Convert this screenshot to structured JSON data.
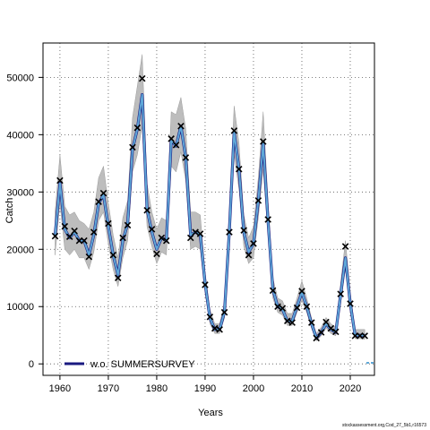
{
  "chart_data": {
    "type": "line",
    "title": "",
    "xlabel": "Years",
    "ylabel": "Catch",
    "xlim": [
      1956.5,
      2025
    ],
    "ylim": [
      -2000,
      56000
    ],
    "x_ticks": [
      1960,
      1970,
      1980,
      1990,
      2000,
      2010,
      2020
    ],
    "y_ticks": [
      0,
      10000,
      20000,
      30000,
      40000,
      50000
    ],
    "x_tick_labels": [
      "1960",
      "1970",
      "1980",
      "1990",
      "2000",
      "2010",
      "2020"
    ],
    "y_tick_labels": [
      "0",
      "10000",
      "20000",
      "30000",
      "40000",
      "50000"
    ],
    "grid": true,
    "legend_position": "bottom-left",
    "caption": "stockassessment.org,Cod_27_5b1,r16573",
    "colors": {
      "band": "#bdbdbd",
      "band_edge": "#9a9a9a",
      "line": "#5fa8d8",
      "line_dark": "#1a1a80",
      "observed": "#000000",
      "grid": "#555555"
    },
    "series": [
      {
        "name": "w.o. SUMMERSURVEY",
        "years": [
          1959,
          1960,
          1961,
          1962,
          1963,
          1964,
          1965,
          1966,
          1967,
          1968,
          1969,
          1970,
          1971,
          1972,
          1973,
          1974,
          1975,
          1976,
          1977,
          1978,
          1979,
          1980,
          1981,
          1982,
          1983,
          1984,
          1985,
          1986,
          1987,
          1988,
          1989,
          1990,
          1991,
          1992,
          1993,
          1994,
          1995,
          1996,
          1997,
          1998,
          1999,
          2000,
          2001,
          2002,
          2003,
          2004,
          2005,
          2006,
          2007,
          2008,
          2009,
          2010,
          2011,
          2012,
          2013,
          2014,
          2015,
          2016,
          2017,
          2018,
          2019,
          2020,
          2021,
          2022,
          2023
        ],
        "estimate": [
          22500,
          31500,
          23500,
          22000,
          23000,
          21500,
          21500,
          19000,
          22500,
          28000,
          29500,
          24000,
          19000,
          15500,
          21500,
          24500,
          37500,
          41000,
          47000,
          27000,
          23000,
          20000,
          22000,
          21500,
          39000,
          38000,
          41500,
          36000,
          22500,
          23000,
          22500,
          14000,
          8000,
          6000,
          6000,
          9000,
          23000,
          40500,
          34000,
          23000,
          19500,
          21000,
          28500,
          38500,
          25000,
          13000,
          10000,
          9500,
          7500,
          7500,
          10000,
          12500,
          10000,
          7000,
          4500,
          5500,
          7000,
          6000,
          5500,
          12000,
          18500,
          10500,
          5000,
          5000,
          5000
        ],
        "lower": [
          19000,
          28000,
          20000,
          19000,
          20000,
          18500,
          18500,
          16500,
          19500,
          25000,
          26500,
          21000,
          16500,
          13500,
          18500,
          21500,
          33500,
          36500,
          41500,
          24000,
          20500,
          17500,
          19500,
          19000,
          34500,
          33500,
          37000,
          32000,
          20000,
          20500,
          20000,
          12500,
          7000,
          5300,
          5300,
          8000,
          20500,
          36500,
          30500,
          20500,
          17500,
          18500,
          25500,
          34000,
          22500,
          11500,
          9000,
          8500,
          6700,
          6700,
          9000,
          11000,
          9000,
          6200,
          4000,
          4900,
          6200,
          5300,
          4900,
          10500,
          16500,
          9200,
          4400,
          4400,
          4300
        ],
        "upper": [
          26500,
          36500,
          27500,
          26000,
          26500,
          25000,
          24500,
          23500,
          26500,
          32500,
          34500,
          28000,
          22500,
          18500,
          25500,
          28500,
          43000,
          48500,
          54000,
          31500,
          26500,
          23500,
          25500,
          25000,
          44000,
          43500,
          46500,
          41000,
          26500,
          26500,
          26000,
          16000,
          9500,
          7000,
          7000,
          10500,
          26500,
          45000,
          38500,
          26000,
          22000,
          24000,
          32500,
          44000,
          28500,
          15000,
          11500,
          11000,
          8800,
          8800,
          11500,
          14500,
          11500,
          8000,
          5300,
          6400,
          8100,
          7000,
          6400,
          14000,
          21500,
          12500,
          6000,
          6000,
          6000
        ],
        "observed": [
          22300,
          32000,
          24000,
          22200,
          23200,
          21500,
          21500,
          18700,
          23000,
          28300,
          29800,
          24500,
          19000,
          15000,
          22000,
          24200,
          37800,
          41200,
          49800,
          26800,
          23500,
          19200,
          22000,
          21500,
          39300,
          38200,
          41500,
          36000,
          22000,
          23000,
          22700,
          13800,
          8200,
          6200,
          6000,
          9000,
          23000,
          40700,
          34000,
          23300,
          19000,
          21000,
          28500,
          38800,
          25200,
          12800,
          10000,
          9700,
          7500,
          7200,
          9800,
          12700,
          10000,
          7200,
          4500,
          5500,
          7300,
          6200,
          5600,
          12200,
          20500,
          10500,
          4900,
          4900,
          4900
        ]
      }
    ]
  }
}
